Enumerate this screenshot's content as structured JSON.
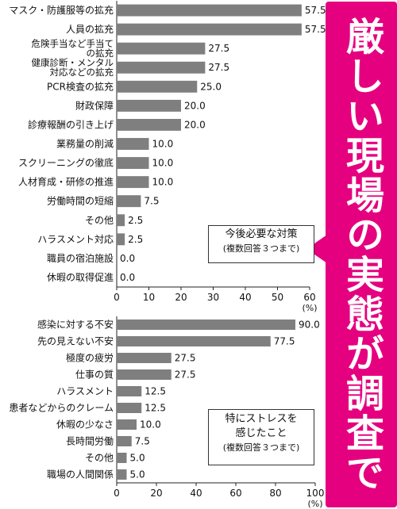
{
  "headline": "厳しい現場の実態が調査で明らかに",
  "chart_data": [
    {
      "type": "bar",
      "orientation": "horizontal",
      "legend_title": "今後必要な対策",
      "legend_subtitle": "(複数回答３つまで)",
      "categories": [
        [
          "マスク・防護服等の拡充"
        ],
        [
          "人員の拡充"
        ],
        [
          "危険手当など手当て",
          "の拡充"
        ],
        [
          "健康診断・メンタル",
          "対応などの拡充"
        ],
        [
          "PCR検査の拡充"
        ],
        [
          "財政保障"
        ],
        [
          "診療報酬の引き上げ"
        ],
        [
          "業務量の削減"
        ],
        [
          "スクリーニングの徹底"
        ],
        [
          "人材育成・研修の推進"
        ],
        [
          "労働時間の短縮"
        ],
        [
          "その他"
        ],
        [
          "ハラスメント対応"
        ],
        [
          "職員の宿泊施設"
        ],
        [
          "休暇の取得促進"
        ]
      ],
      "values": [
        57.5,
        57.5,
        27.5,
        27.5,
        25.0,
        20.0,
        20.0,
        10.0,
        10.0,
        10.0,
        7.5,
        2.5,
        2.5,
        0.0,
        0.0
      ],
      "value_labels": [
        "57.5",
        "57.5",
        "27.5",
        "27.5",
        "25.0",
        "20.0",
        "20.0",
        "10.0",
        "10.0",
        "10.0",
        "7.5",
        "2.5",
        "2.5",
        "0.0",
        "0.0"
      ],
      "xlim": [
        0,
        60
      ],
      "xticks": [
        "0",
        "10",
        "20",
        "30",
        "40",
        "50",
        "60"
      ],
      "xunit": "(%)",
      "bar_color": "#7f7f7f"
    },
    {
      "type": "bar",
      "orientation": "horizontal",
      "legend_title": "特にストレスを\n感じたこと",
      "legend_subtitle": "(複数回答３つまで)",
      "categories": [
        [
          "感染に対する不安"
        ],
        [
          "先の見えない不安"
        ],
        [
          "極度の疲労"
        ],
        [
          "仕事の質"
        ],
        [
          "ハラスメント"
        ],
        [
          "患者などからのクレーム"
        ],
        [
          "休暇の少なさ"
        ],
        [
          "長時間労働"
        ],
        [
          "その他"
        ],
        [
          "職場の人間関係"
        ]
      ],
      "values": [
        90.0,
        77.5,
        27.5,
        27.5,
        12.5,
        12.5,
        10.0,
        7.5,
        5.0,
        5.0
      ],
      "value_labels": [
        "90.0",
        "77.5",
        "27.5",
        "27.5",
        "12.5",
        "12.5",
        "10.0",
        "7.5",
        "5.0",
        "5.0"
      ],
      "xlim": [
        0,
        100
      ],
      "xticks": [
        "0",
        "20",
        "40",
        "60",
        "80",
        "100"
      ],
      "xunit": "(%)",
      "bar_color": "#7f7f7f"
    }
  ],
  "colors": {
    "banner": "#e5007f",
    "bar": "#7f7f7f"
  }
}
